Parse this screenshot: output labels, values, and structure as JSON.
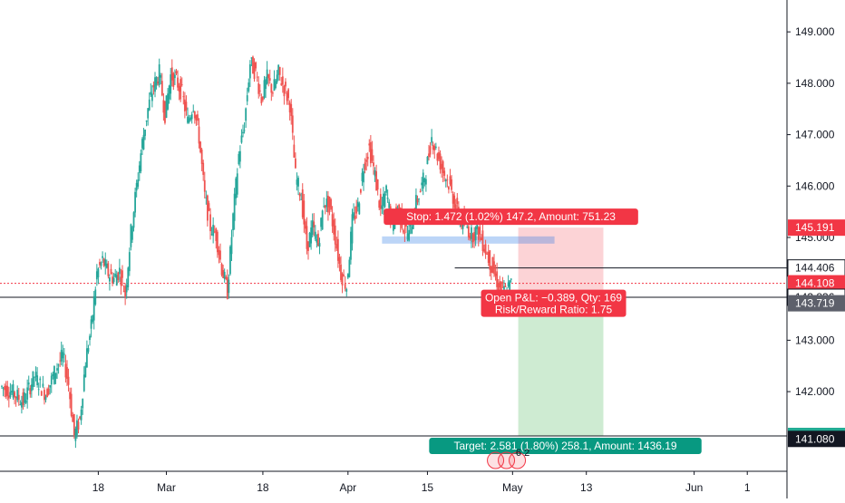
{
  "chart_data": {
    "type": "candlestick",
    "symbol_hint": "",
    "y_axis": {
      "min": 140.45,
      "max": 149.62,
      "ticks": [
        "149.000",
        "148.000",
        "147.000",
        "146.000",
        "145.000",
        "143.000",
        "142.000"
      ],
      "tick_values": [
        149,
        148,
        147,
        146,
        145,
        143,
        142
      ]
    },
    "x_axis": {
      "labels": [
        "18",
        "Mar",
        "18",
        "Apr",
        "15",
        "May",
        "13",
        "Jun",
        "1"
      ],
      "label_days": [
        17,
        29,
        46,
        61,
        75,
        90,
        103,
        122,
        132
      ]
    },
    "price_tags": [
      {
        "text": "145.191",
        "value": 145.191,
        "bg": "#f23645",
        "fg": "#ffffff"
      },
      {
        "text": "144.406",
        "value": 144.406,
        "bg": "#ffffff",
        "fg": "#131722",
        "border": "#131722"
      },
      {
        "text": "144.108",
        "value": 144.108,
        "bg": "#f23645",
        "fg": "#ffffff"
      },
      {
        "text": "143.836",
        "value": 143.836,
        "bg": "#ffffff",
        "fg": "#131722",
        "border": "#131722"
      },
      {
        "text": "143.719",
        "value": 143.719,
        "bg": "#5d606b",
        "fg": "#ffffff"
      },
      {
        "text": "141.138",
        "value": 141.138,
        "bg": "#22ab94",
        "fg": "#ffffff"
      },
      {
        "text": "141.080",
        "value": 141.08,
        "bg": "#131722",
        "fg": "#ffffff"
      }
    ],
    "horizontal_lines": [
      144.406,
      143.836,
      141.138
    ],
    "current_price": 144.108,
    "position": {
      "entry": 143.719,
      "stop": 145.191,
      "target": 141.138,
      "stop_label": "Stop: 1.472 (1.02%) 147.2, Amount: 751.23",
      "pnl_label": "Open P&L: −0.389, Qty: 169",
      "rr_label": "Risk/Reward Ratio: 1.75",
      "target_label": "Target: 2.581 (1.80%) 258.1, Amount: 1436.19"
    },
    "event_badges": {
      "text": "6 2"
    },
    "candle_path": [
      [
        0,
        142.1
      ],
      [
        2,
        142.0
      ],
      [
        4,
        141.8
      ],
      [
        6,
        142.3
      ],
      [
        8,
        141.95
      ],
      [
        10,
        142.5
      ],
      [
        11,
        142.7
      ],
      [
        12,
        142.15
      ],
      [
        13,
        141.15
      ],
      [
        14,
        141.45
      ],
      [
        15,
        142.6
      ],
      [
        16,
        143.25
      ],
      [
        17,
        144.3
      ],
      [
        18,
        144.55
      ],
      [
        19,
        144.3
      ],
      [
        20,
        144.2
      ],
      [
        21,
        144.35
      ],
      [
        22,
        143.9
      ],
      [
        23,
        145.1
      ],
      [
        24,
        146.0
      ],
      [
        25,
        146.85
      ],
      [
        26,
        147.5
      ],
      [
        27,
        147.95
      ],
      [
        28,
        148.2
      ],
      [
        29,
        147.4
      ],
      [
        30,
        148.15
      ],
      [
        31,
        148.05
      ],
      [
        32,
        147.8
      ],
      [
        33,
        147.25
      ],
      [
        34,
        147.6
      ],
      [
        35,
        146.95
      ],
      [
        36,
        145.8
      ],
      [
        37,
        145.2
      ],
      [
        38,
        145.05
      ],
      [
        39,
        144.4
      ],
      [
        40,
        143.95
      ],
      [
        41,
        145.4
      ],
      [
        42,
        146.6
      ],
      [
        43,
        147.2
      ],
      [
        44,
        148.4
      ],
      [
        45,
        148.2
      ],
      [
        46,
        147.7
      ],
      [
        47,
        148.1
      ],
      [
        48,
        147.85
      ],
      [
        49,
        148.2
      ],
      [
        50,
        147.9
      ],
      [
        51,
        147.6
      ],
      [
        52,
        146.2
      ],
      [
        53,
        145.8
      ],
      [
        54,
        144.8
      ],
      [
        55,
        145.2
      ],
      [
        56,
        144.85
      ],
      [
        57,
        145.7
      ],
      [
        58,
        145.6
      ],
      [
        59,
        145.0
      ],
      [
        60,
        144.3
      ],
      [
        61,
        144.05
      ],
      [
        62,
        145.3
      ],
      [
        63,
        145.6
      ],
      [
        64,
        146.4
      ],
      [
        65,
        146.75
      ],
      [
        66,
        146.2
      ],
      [
        67,
        145.5
      ],
      [
        68,
        145.9
      ],
      [
        69,
        145.25
      ],
      [
        70,
        145.6
      ],
      [
        71,
        145.2
      ],
      [
        72,
        145.05
      ],
      [
        73,
        145.6
      ],
      [
        74,
        145.9
      ],
      [
        75,
        146.3
      ],
      [
        76,
        146.95
      ],
      [
        77,
        146.6
      ],
      [
        78,
        146.3
      ],
      [
        79,
        146.05
      ],
      [
        80,
        145.7
      ],
      [
        81,
        145.3
      ],
      [
        82,
        145.25
      ],
      [
        83,
        145.05
      ],
      [
        84,
        145.15
      ],
      [
        85,
        144.9
      ],
      [
        86,
        144.6
      ],
      [
        87,
        144.3
      ],
      [
        88,
        144.0
      ],
      [
        89,
        143.95
      ],
      [
        90,
        144.1
      ]
    ],
    "layout_days": {
      "first_day": 0,
      "last_day": 90,
      "plot_right_day": 135,
      "position_start_day": 91,
      "position_end_day": 106,
      "support_bar": {
        "start_day": 67,
        "end_day": 91,
        "value": 144.95
      }
    }
  }
}
